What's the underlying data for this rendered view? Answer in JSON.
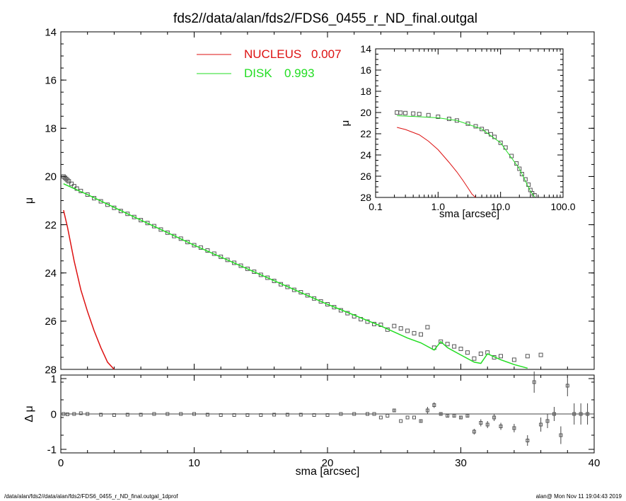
{
  "title": "fds2//data/alan/fds2/FDS6_0455_r_ND_final.outgal",
  "footer": {
    "left": "/data/alan/fds2//data/alan/fds2/FDS6_0455_r_ND_final.outgal_1dprof",
    "right": "alan@  Mon Nov 11 19:04:43 2019"
  },
  "colors": {
    "nucleus": "#dd1111",
    "disk": "#22dd22",
    "data": "#555555",
    "axes": "#000000"
  },
  "chart_data": [
    {
      "id": "main",
      "type": "line",
      "xlabel": "",
      "ylabel": "μ",
      "xlim": [
        0,
        40
      ],
      "ylim": [
        28,
        14
      ],
      "y_inverted": true,
      "x_ticks": [
        0,
        10,
        20,
        30,
        40
      ],
      "y_ticks": [
        14,
        16,
        18,
        20,
        22,
        24,
        26,
        28
      ],
      "legend": {
        "placement": "top-center",
        "entries": [
          {
            "name": "NUCLEUS",
            "value": "0.007",
            "color": "#dd1111"
          },
          {
            "name": "DISK",
            "value": "0.993",
            "color": "#22dd22"
          }
        ]
      },
      "series": [
        {
          "name": "data",
          "marker": "square",
          "x": [
            0.2,
            0.3,
            0.4,
            0.5,
            0.6,
            0.8,
            1.0,
            1.2,
            1.5,
            2.0,
            2.5,
            3.0,
            3.5,
            4.0,
            4.5,
            5.0,
            5.5,
            6.0,
            6.5,
            7.0,
            7.5,
            8.0,
            8.5,
            9.0,
            9.5,
            10.0,
            10.5,
            11.0,
            11.5,
            12.0,
            12.5,
            13.0,
            13.5,
            14.0,
            14.5,
            15.0,
            15.5,
            16.0,
            16.5,
            17.0,
            17.5,
            18.0,
            18.5,
            19.0,
            19.5,
            20.0,
            20.5,
            21.0,
            21.5,
            22.0,
            22.5,
            23.0,
            23.5,
            24.0,
            24.5,
            25.0,
            25.5,
            26.0,
            26.5,
            27.0,
            27.5,
            28.0,
            28.5,
            29.0,
            29.5,
            30.0,
            30.5,
            31.0,
            31.5,
            32.0,
            32.5,
            33.0,
            34.0,
            35.0,
            36.0
          ],
          "y": [
            20.0,
            20.05,
            20.1,
            20.15,
            20.2,
            20.3,
            20.4,
            20.5,
            20.6,
            20.75,
            20.9,
            21.03,
            21.17,
            21.3,
            21.43,
            21.55,
            21.68,
            21.81,
            21.93,
            22.06,
            22.2,
            22.33,
            22.47,
            22.58,
            22.72,
            22.85,
            22.95,
            23.07,
            23.2,
            23.33,
            23.46,
            23.58,
            23.7,
            23.83,
            23.95,
            24.08,
            24.2,
            24.33,
            24.47,
            24.58,
            24.7,
            24.8,
            24.93,
            25.06,
            25.18,
            25.3,
            25.42,
            25.55,
            25.67,
            25.8,
            25.92,
            26.02,
            26.12,
            26.15,
            26.35,
            26.2,
            26.3,
            26.4,
            26.5,
            26.55,
            26.25,
            27.1,
            26.85,
            26.95,
            27.05,
            27.15,
            27.3,
            27.55,
            27.35,
            27.3,
            27.5,
            27.45,
            27.6,
            27.45,
            27.4
          ]
        },
        {
          "name": "NUCLEUS",
          "color": "#dd1111",
          "x": [
            0.2,
            0.5,
            1.0,
            1.5,
            2.0,
            2.5,
            3.0,
            3.5,
            4.0
          ],
          "y": [
            21.4,
            22.1,
            23.5,
            24.7,
            25.6,
            26.4,
            27.1,
            27.7,
            28.0
          ]
        },
        {
          "name": "DISK",
          "color": "#22dd22",
          "x": [
            0.2,
            2.0,
            5.0,
            10.0,
            15.0,
            20.0,
            24.0,
            25.0,
            26.0,
            27.0,
            28.0,
            28.5,
            29.0,
            30.0,
            31.0,
            31.5,
            32.0,
            33.0,
            34.0,
            35.0
          ],
          "y": [
            20.3,
            20.75,
            21.55,
            22.85,
            24.08,
            25.3,
            26.2,
            26.45,
            26.7,
            26.9,
            27.2,
            26.85,
            27.1,
            27.4,
            27.7,
            27.75,
            27.35,
            27.6,
            27.8,
            27.95
          ]
        }
      ]
    },
    {
      "id": "inset",
      "type": "line",
      "xlabel": "sma [arcsec]",
      "ylabel": "μ",
      "x_scale": "log",
      "xlim": [
        0.1,
        100
      ],
      "ylim": [
        28,
        14
      ],
      "y_inverted": true,
      "x_ticks": [
        0.1,
        1,
        10,
        100
      ],
      "x_tick_labels": [
        "0.1",
        "1.0",
        "10.0",
        "100.0"
      ],
      "y_ticks": [
        14,
        16,
        18,
        20,
        22,
        24,
        26,
        28
      ],
      "series": [
        {
          "name": "data",
          "marker": "square",
          "x": [
            0.22,
            0.25,
            0.3,
            0.4,
            0.5,
            0.7,
            1.0,
            1.5,
            2.0,
            3.0,
            4.0,
            5.0,
            6.0,
            7.0,
            8.0,
            10.0,
            12.0,
            15.0,
            18.0,
            20.0,
            22.0,
            25.0,
            28.0,
            30.0,
            32.0,
            35.0
          ],
          "y": [
            20.0,
            20.02,
            20.05,
            20.1,
            20.15,
            20.25,
            20.4,
            20.6,
            20.75,
            21.05,
            21.3,
            21.55,
            21.8,
            22.05,
            22.3,
            22.85,
            23.3,
            24.1,
            24.8,
            25.3,
            25.8,
            26.3,
            26.8,
            27.3,
            27.6,
            27.8
          ]
        },
        {
          "name": "NUCLEUS",
          "color": "#dd1111",
          "x": [
            0.22,
            0.3,
            0.5,
            0.7,
            1.0,
            1.5,
            2.0,
            2.5,
            3.0,
            3.5,
            4.0
          ],
          "y": [
            21.4,
            21.6,
            22.1,
            22.7,
            23.5,
            24.7,
            25.6,
            26.4,
            27.1,
            27.7,
            28.0
          ]
        },
        {
          "name": "DISK",
          "color": "#22dd22",
          "x": [
            0.22,
            0.5,
            1.0,
            2.0,
            5.0,
            10.0,
            20.0,
            25.0,
            30.0,
            35.0
          ],
          "y": [
            20.3,
            20.4,
            20.5,
            20.75,
            21.55,
            22.85,
            25.3,
            26.45,
            27.4,
            27.95
          ]
        }
      ]
    },
    {
      "id": "residual",
      "type": "scatter",
      "xlabel": "sma [arcsec]",
      "ylabel": "Δ μ",
      "xlim": [
        0,
        40
      ],
      "ylim": [
        -1.1,
        1.1
      ],
      "x_ticks": [
        0,
        10,
        20,
        30,
        40
      ],
      "y_ticks": [
        -1,
        0,
        1
      ],
      "zero_line": true,
      "series": [
        {
          "name": "residuals",
          "marker": "square",
          "x": [
            0.2,
            0.5,
            1.0,
            1.5,
            2.0,
            3.0,
            4.0,
            5.0,
            6.0,
            7.0,
            8.0,
            9.0,
            10.0,
            11.0,
            12.0,
            13.0,
            14.0,
            15.0,
            16.0,
            17.0,
            18.0,
            19.0,
            20.0,
            21.0,
            22.0,
            23.0,
            23.5,
            24.0,
            24.5,
            25.0,
            25.5,
            26.0,
            26.5,
            27.0,
            27.5,
            28.0,
            28.5,
            29.0,
            29.5,
            30.0,
            30.5,
            31.0,
            31.5,
            32.0,
            32.5,
            33.0,
            34.0,
            35.0,
            35.5,
            36.0,
            36.5,
            37.0,
            37.5,
            38.0,
            38.5,
            39.0,
            39.5
          ],
          "y": [
            0.0,
            -0.01,
            0.0,
            0.02,
            0.0,
            -0.02,
            -0.03,
            -0.02,
            -0.02,
            0.0,
            0.0,
            0.0,
            0.0,
            -0.02,
            -0.03,
            -0.03,
            -0.03,
            -0.03,
            -0.02,
            -0.02,
            -0.02,
            -0.03,
            -0.03,
            0.0,
            0.0,
            0.0,
            0.0,
            -0.1,
            -0.05,
            0.1,
            -0.2,
            -0.1,
            -0.1,
            -0.2,
            0.1,
            0.25,
            0.0,
            -0.05,
            -0.05,
            -0.1,
            -0.05,
            -0.5,
            -0.25,
            -0.3,
            -0.1,
            -0.35,
            -0.4,
            -0.75,
            0.9,
            -0.3,
            -0.2,
            0.0,
            -0.6,
            0.8,
            0.0,
            0.0,
            0.0
          ],
          "err": [
            0.0,
            0.0,
            0.0,
            0.0,
            0.0,
            0.0,
            0.0,
            0.0,
            0.0,
            0.0,
            0.0,
            0.0,
            0.0,
            0.0,
            0.0,
            0.0,
            0.0,
            0.0,
            0.0,
            0.0,
            0.0,
            0.0,
            0.0,
            0.0,
            0.0,
            0.0,
            0.0,
            0.0,
            0.0,
            0.05,
            0.0,
            0.0,
            0.0,
            0.05,
            0.1,
            0.08,
            0.05,
            0.05,
            0.05,
            0.05,
            0.05,
            0.08,
            0.1,
            0.1,
            0.1,
            0.1,
            0.12,
            0.15,
            0.3,
            0.2,
            0.2,
            0.2,
            0.25,
            0.3,
            0.3,
            0.3,
            0.3
          ]
        }
      ]
    }
  ]
}
